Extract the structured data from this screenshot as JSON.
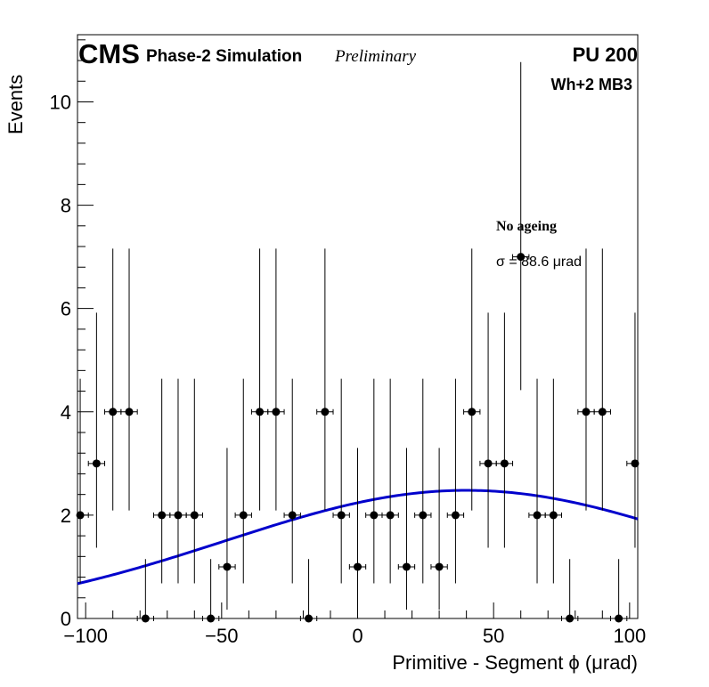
{
  "header": {
    "experiment": "CMS",
    "subtitle": "Phase-2 Simulation",
    "status": "Preliminary",
    "pileup": "PU 200",
    "region": "Wh+2 MB3"
  },
  "annotation": {
    "condition": "No ageing",
    "fit_result": "σ = 88.6  μrad"
  },
  "colors": {
    "data": "#000000",
    "fit": "#0000cc"
  },
  "chart_data": {
    "type": "scatter",
    "xlabel": "Primitive - Segment ϕ (μrad)",
    "ylabel": "Events",
    "xlim": [
      -103,
      103
    ],
    "ylim": [
      0,
      11.3
    ],
    "x_ticks": [
      -100,
      -50,
      0,
      50,
      100
    ],
    "x_tick_labels": [
      "−100",
      "−50",
      "0",
      "50",
      "100"
    ],
    "y_ticks": [
      0,
      2,
      4,
      6,
      8,
      10
    ],
    "y_tick_labels": [
      "0",
      "2",
      "4",
      "6",
      "8",
      "10"
    ],
    "grid": false,
    "bin_width": 6,
    "series": [
      {
        "x": [
          -102,
          -96,
          -90,
          -84,
          -78,
          -72,
          -66,
          -60,
          -54,
          -48,
          -42,
          -36,
          -30,
          -24,
          -18,
          -12,
          -6,
          0,
          6,
          12,
          18,
          24,
          30,
          36,
          42,
          48,
          54,
          60,
          66,
          72,
          78,
          84,
          90,
          96,
          102
        ],
        "y": [
          2,
          3,
          4,
          4,
          0,
          2,
          2,
          2,
          0,
          1,
          2,
          4,
          4,
          2,
          0,
          4,
          2,
          1,
          2,
          2,
          1,
          2,
          1,
          2,
          4,
          3,
          3,
          7,
          2,
          2,
          0,
          4,
          4,
          0,
          3
        ],
        "err_low": [
          1.32,
          1.63,
          1.91,
          1.91,
          0,
          1.32,
          1.32,
          1.32,
          0,
          0.83,
          1.32,
          1.91,
          1.91,
          1.32,
          0,
          1.91,
          1.32,
          0.83,
          1.32,
          1.32,
          0.83,
          1.32,
          0.83,
          1.32,
          1.91,
          1.63,
          1.63,
          2.58,
          1.32,
          1.32,
          0,
          1.91,
          1.91,
          0,
          1.63
        ],
        "err_high": [
          2.64,
          2.92,
          3.16,
          3.16,
          1.15,
          2.64,
          2.64,
          2.64,
          1.15,
          2.3,
          2.64,
          3.16,
          3.16,
          2.64,
          1.15,
          3.16,
          2.64,
          2.3,
          2.64,
          2.64,
          2.3,
          2.64,
          2.3,
          2.64,
          3.16,
          2.92,
          2.92,
          3.77,
          2.64,
          2.64,
          1.15,
          3.16,
          3.16,
          1.15,
          2.92
        ]
      }
    ],
    "fit": {
      "type": "gaussian",
      "amplitude": 2.48,
      "mean": 40,
      "sigma": 88.6
    }
  }
}
